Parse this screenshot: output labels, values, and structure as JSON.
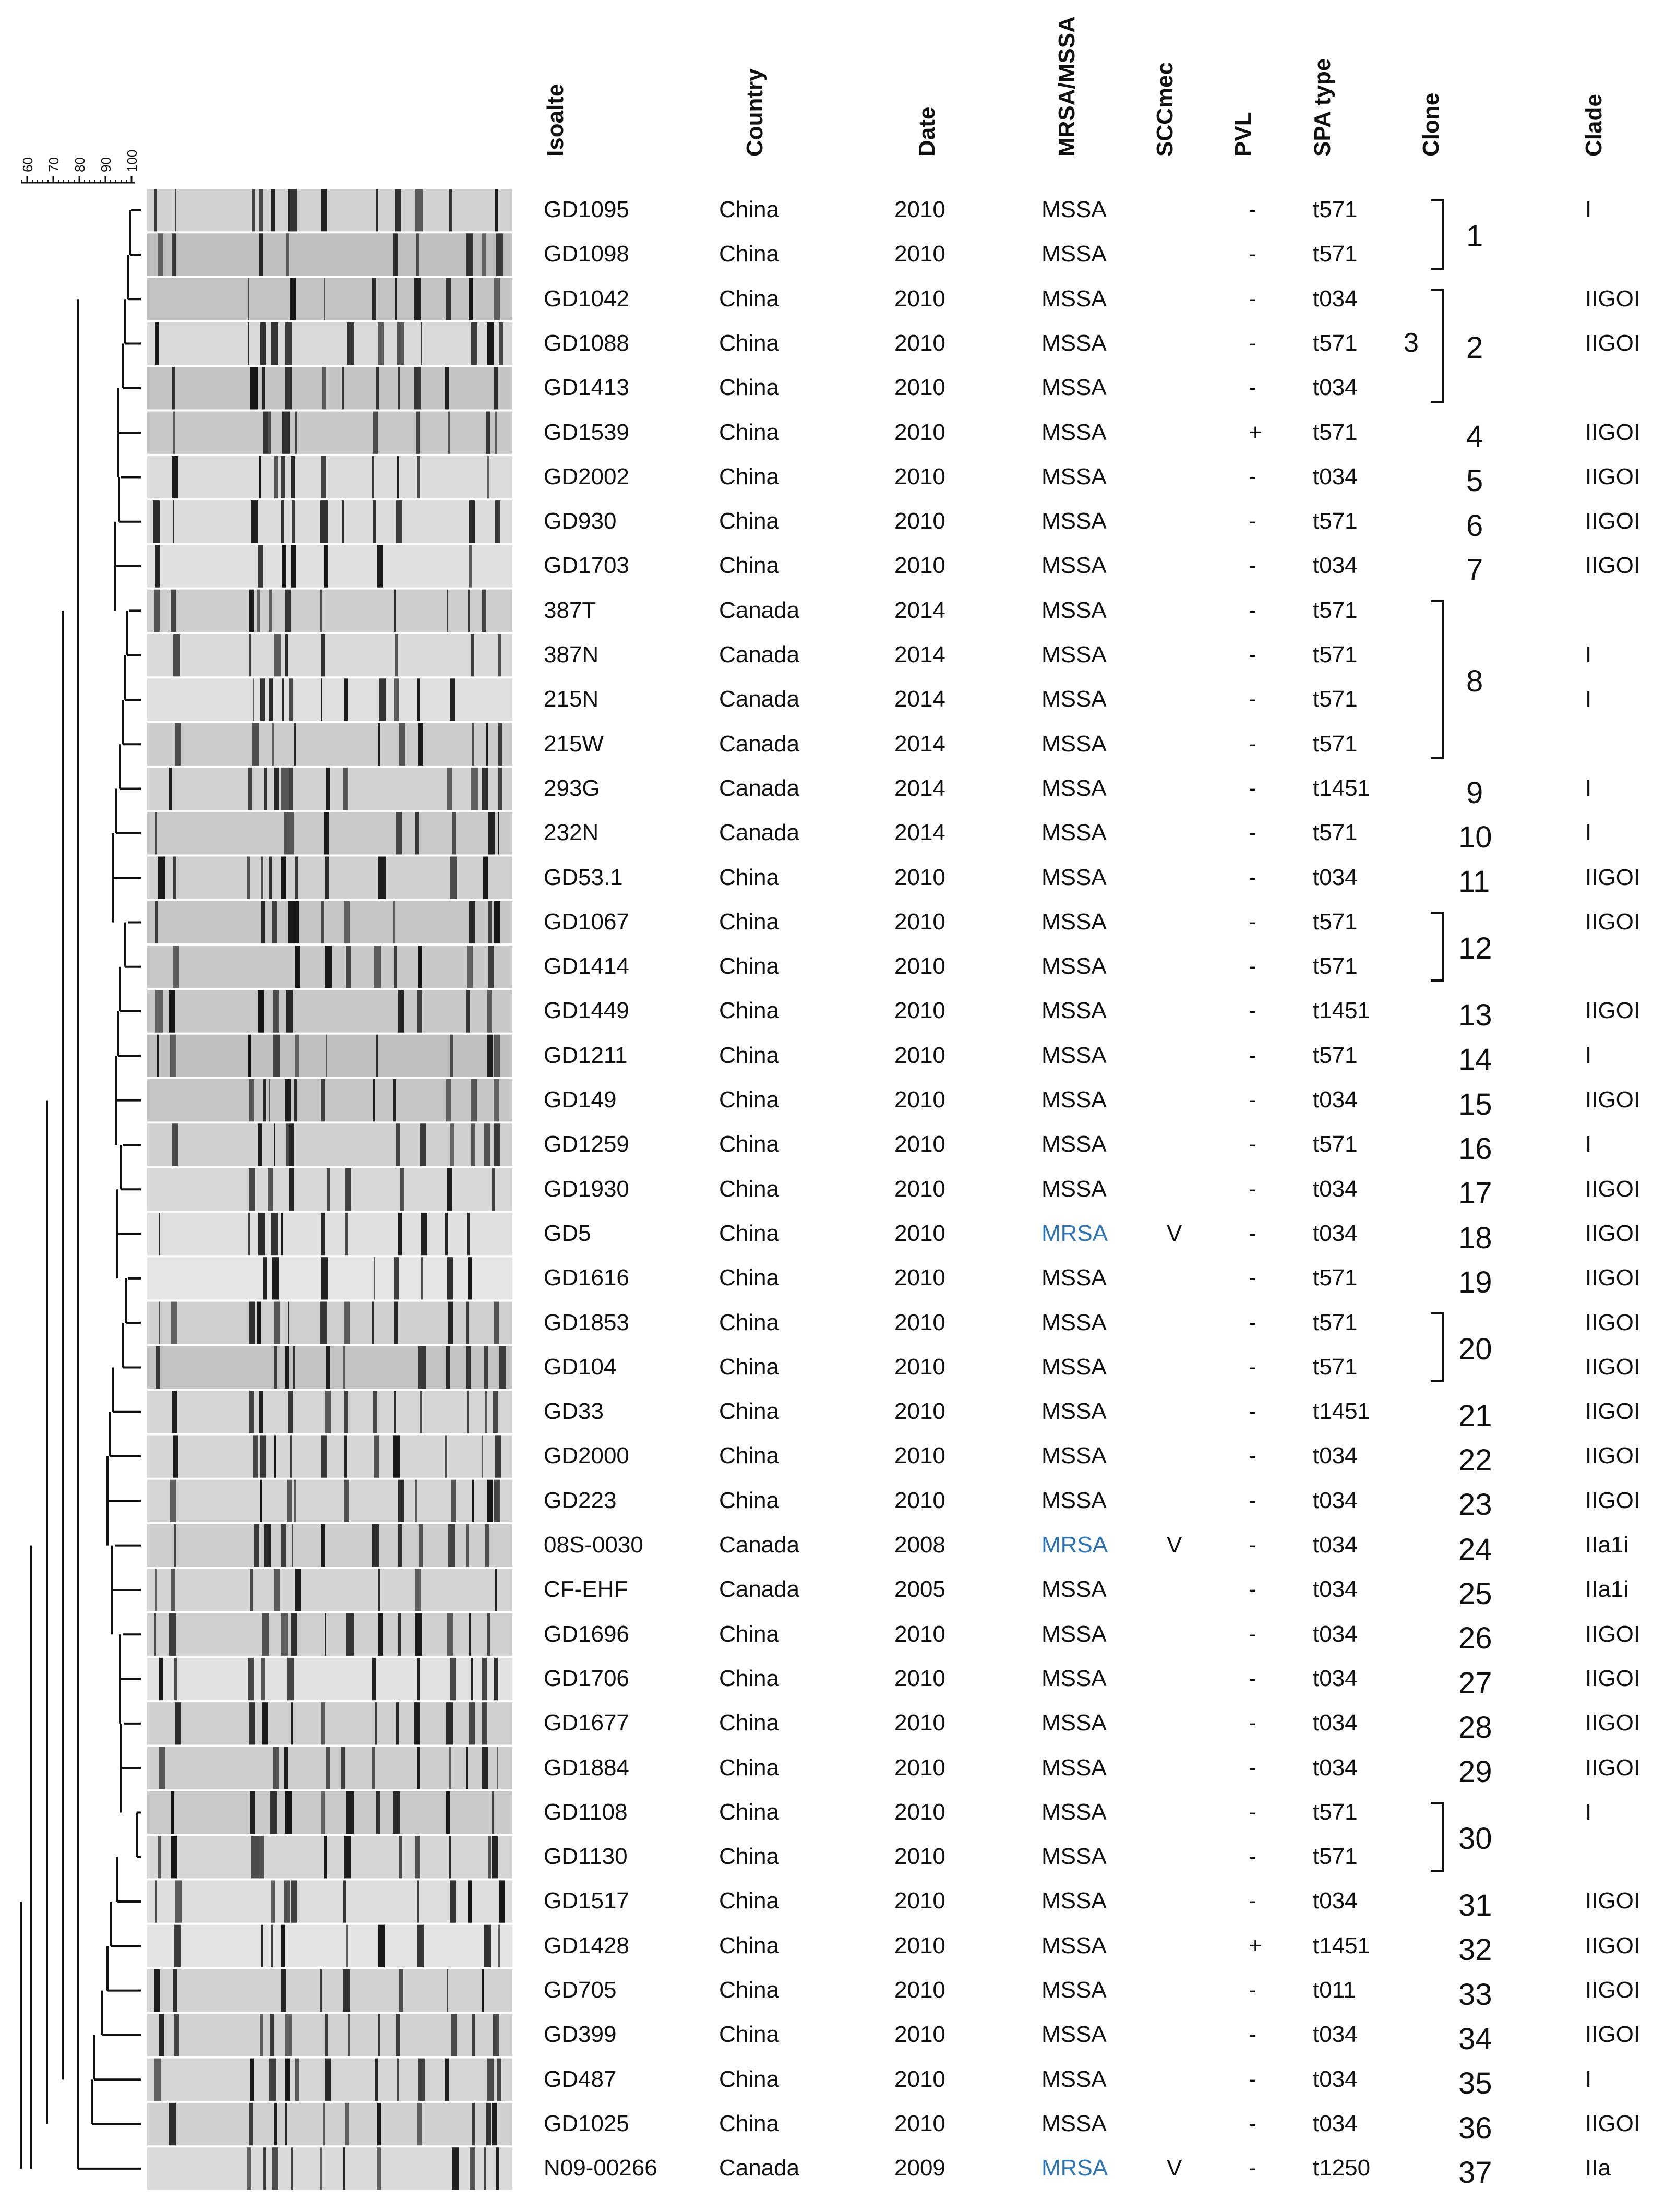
{
  "headers": {
    "isolate": "Isoalte",
    "country": "Country",
    "date": "Date",
    "mrsa_mssa": "MRSA/MSSA",
    "sccmec": "SCCmec",
    "pvl": "PVL",
    "spa_type": "SPA type",
    "clone": "Clone",
    "clade": "Clade"
  },
  "scale_ticks": [
    "60",
    "70",
    "80",
    "90",
    "100"
  ],
  "colors": {
    "mrsa_text": "#2e75b6",
    "text": "#111111",
    "gel_background": "#d0d0d0"
  },
  "rows": [
    {
      "isolate": "GD1095",
      "country": "China",
      "date": "2010",
      "status": "MSSA",
      "sccmec": "",
      "pvl": "-",
      "spa": "t571",
      "clade": "I"
    },
    {
      "isolate": "GD1098",
      "country": "China",
      "date": "2010",
      "status": "MSSA",
      "sccmec": "",
      "pvl": "-",
      "spa": "t571",
      "clade": ""
    },
    {
      "isolate": "GD1042",
      "country": "China",
      "date": "2010",
      "status": "MSSA",
      "sccmec": "",
      "pvl": "-",
      "spa": "t034",
      "clade": "IIGOI"
    },
    {
      "isolate": "GD1088",
      "country": "China",
      "date": "2010",
      "status": "MSSA",
      "sccmec": "",
      "pvl": "-",
      "spa": "t571",
      "clade": "IIGOI"
    },
    {
      "isolate": "GD1413",
      "country": "China",
      "date": "2010",
      "status": "MSSA",
      "sccmec": "",
      "pvl": "-",
      "spa": "t034",
      "clade": ""
    },
    {
      "isolate": "GD1539",
      "country": "China",
      "date": "2010",
      "status": "MSSA",
      "sccmec": "",
      "pvl": "+",
      "spa": "t571",
      "clade": "IIGOI"
    },
    {
      "isolate": "GD2002",
      "country": "China",
      "date": "2010",
      "status": "MSSA",
      "sccmec": "",
      "pvl": "-",
      "spa": "t034",
      "clade": "IIGOI"
    },
    {
      "isolate": "GD930",
      "country": "China",
      "date": "2010",
      "status": "MSSA",
      "sccmec": "",
      "pvl": "-",
      "spa": "t571",
      "clade": "IIGOI"
    },
    {
      "isolate": "GD1703",
      "country": "China",
      "date": "2010",
      "status": "MSSA",
      "sccmec": "",
      "pvl": "-",
      "spa": "t034",
      "clade": "IIGOI"
    },
    {
      "isolate": "387T",
      "country": "Canada",
      "date": "2014",
      "status": "MSSA",
      "sccmec": "",
      "pvl": "-",
      "spa": "t571",
      "clade": ""
    },
    {
      "isolate": "387N",
      "country": "Canada",
      "date": "2014",
      "status": "MSSA",
      "sccmec": "",
      "pvl": "-",
      "spa": "t571",
      "clade": "I"
    },
    {
      "isolate": "215N",
      "country": "Canada",
      "date": "2014",
      "status": "MSSA",
      "sccmec": "",
      "pvl": "-",
      "spa": "t571",
      "clade": "I"
    },
    {
      "isolate": "215W",
      "country": "Canada",
      "date": "2014",
      "status": "MSSA",
      "sccmec": "",
      "pvl": "-",
      "spa": "t571",
      "clade": ""
    },
    {
      "isolate": "293G",
      "country": "Canada",
      "date": "2014",
      "status": "MSSA",
      "sccmec": "",
      "pvl": "-",
      "spa": "t1451",
      "clade": "I"
    },
    {
      "isolate": "232N",
      "country": "Canada",
      "date": "2014",
      "status": "MSSA",
      "sccmec": "",
      "pvl": "-",
      "spa": "t571",
      "clade": "I"
    },
    {
      "isolate": "GD53.1",
      "country": "China",
      "date": "2010",
      "status": "MSSA",
      "sccmec": "",
      "pvl": "-",
      "spa": "t034",
      "clade": "IIGOI"
    },
    {
      "isolate": "GD1067",
      "country": "China",
      "date": "2010",
      "status": "MSSA",
      "sccmec": "",
      "pvl": "-",
      "spa": "t571",
      "clade": "IIGOI"
    },
    {
      "isolate": "GD1414",
      "country": "China",
      "date": "2010",
      "status": "MSSA",
      "sccmec": "",
      "pvl": "-",
      "spa": "t571",
      "clade": ""
    },
    {
      "isolate": "GD1449",
      "country": "China",
      "date": "2010",
      "status": "MSSA",
      "sccmec": "",
      "pvl": "-",
      "spa": "t1451",
      "clade": "IIGOI"
    },
    {
      "isolate": "GD1211",
      "country": "China",
      "date": "2010",
      "status": "MSSA",
      "sccmec": "",
      "pvl": "-",
      "spa": "t571",
      "clade": "I"
    },
    {
      "isolate": "GD149",
      "country": "China",
      "date": "2010",
      "status": "MSSA",
      "sccmec": "",
      "pvl": "-",
      "spa": "t034",
      "clade": "IIGOI"
    },
    {
      "isolate": "GD1259",
      "country": "China",
      "date": "2010",
      "status": "MSSA",
      "sccmec": "",
      "pvl": "-",
      "spa": "t571",
      "clade": "I"
    },
    {
      "isolate": "GD1930",
      "country": "China",
      "date": "2010",
      "status": "MSSA",
      "sccmec": "",
      "pvl": "-",
      "spa": "t034",
      "clade": "IIGOI"
    },
    {
      "isolate": "GD5",
      "country": "China",
      "date": "2010",
      "status": "MRSA",
      "sccmec": "V",
      "pvl": "-",
      "spa": "t034",
      "clade": "IIGOI"
    },
    {
      "isolate": "GD1616",
      "country": "China",
      "date": "2010",
      "status": "MSSA",
      "sccmec": "",
      "pvl": "-",
      "spa": "t571",
      "clade": "IIGOI"
    },
    {
      "isolate": "GD1853",
      "country": "China",
      "date": "2010",
      "status": "MSSA",
      "sccmec": "",
      "pvl": "-",
      "spa": "t571",
      "clade": "IIGOI"
    },
    {
      "isolate": "GD104",
      "country": "China",
      "date": "2010",
      "status": "MSSA",
      "sccmec": "",
      "pvl": "-",
      "spa": "t571",
      "clade": "IIGOI"
    },
    {
      "isolate": "GD33",
      "country": "China",
      "date": "2010",
      "status": "MSSA",
      "sccmec": "",
      "pvl": "-",
      "spa": "t1451",
      "clade": "IIGOI"
    },
    {
      "isolate": "GD2000",
      "country": "China",
      "date": "2010",
      "status": "MSSA",
      "sccmec": "",
      "pvl": "-",
      "spa": "t034",
      "clade": "IIGOI"
    },
    {
      "isolate": "GD223",
      "country": "China",
      "date": "2010",
      "status": "MSSA",
      "sccmec": "",
      "pvl": "-",
      "spa": "t034",
      "clade": "IIGOI"
    },
    {
      "isolate": "08S-0030",
      "country": "Canada",
      "date": "2008",
      "status": "MRSA",
      "sccmec": "V",
      "pvl": "-",
      "spa": "t034",
      "clade": "IIa1i"
    },
    {
      "isolate": "CF-EHF",
      "country": "Canada",
      "date": "2005",
      "status": "MSSA",
      "sccmec": "",
      "pvl": "-",
      "spa": "t034",
      "clade": "IIa1i"
    },
    {
      "isolate": "GD1696",
      "country": "China",
      "date": "2010",
      "status": "MSSA",
      "sccmec": "",
      "pvl": "-",
      "spa": "t034",
      "clade": "IIGOI"
    },
    {
      "isolate": "GD1706",
      "country": "China",
      "date": "2010",
      "status": "MSSA",
      "sccmec": "",
      "pvl": "-",
      "spa": "t034",
      "clade": "IIGOI"
    },
    {
      "isolate": "GD1677",
      "country": "China",
      "date": "2010",
      "status": "MSSA",
      "sccmec": "",
      "pvl": "-",
      "spa": "t034",
      "clade": "IIGOI"
    },
    {
      "isolate": "GD1884",
      "country": "China",
      "date": "2010",
      "status": "MSSA",
      "sccmec": "",
      "pvl": "-",
      "spa": "t034",
      "clade": "IIGOI"
    },
    {
      "isolate": "GD1108",
      "country": "China",
      "date": "2010",
      "status": "MSSA",
      "sccmec": "",
      "pvl": "-",
      "spa": "t571",
      "clade": "I"
    },
    {
      "isolate": "GD1130",
      "country": "China",
      "date": "2010",
      "status": "MSSA",
      "sccmec": "",
      "pvl": "-",
      "spa": "t571",
      "clade": ""
    },
    {
      "isolate": "GD1517",
      "country": "China",
      "date": "2010",
      "status": "MSSA",
      "sccmec": "",
      "pvl": "-",
      "spa": "t034",
      "clade": "IIGOI"
    },
    {
      "isolate": "GD1428",
      "country": "China",
      "date": "2010",
      "status": "MSSA",
      "sccmec": "",
      "pvl": "+",
      "spa": "t1451",
      "clade": "IIGOI"
    },
    {
      "isolate": "GD705",
      "country": "China",
      "date": "2010",
      "status": "MSSA",
      "sccmec": "",
      "pvl": "-",
      "spa": "t011",
      "clade": "IIGOI"
    },
    {
      "isolate": "GD399",
      "country": "China",
      "date": "2010",
      "status": "MSSA",
      "sccmec": "",
      "pvl": "-",
      "spa": "t034",
      "clade": "IIGOI"
    },
    {
      "isolate": "GD487",
      "country": "China",
      "date": "2010",
      "status": "MSSA",
      "sccmec": "",
      "pvl": "-",
      "spa": "t034",
      "clade": "I"
    },
    {
      "isolate": "GD1025",
      "country": "China",
      "date": "2010",
      "status": "MSSA",
      "sccmec": "",
      "pvl": "-",
      "spa": "t034",
      "clade": "IIGOI"
    },
    {
      "isolate": "N09-00266",
      "country": "Canada",
      "date": "2009",
      "status": "MRSA",
      "sccmec": "V",
      "pvl": "-",
      "spa": "t1250",
      "clade": "IIa"
    }
  ],
  "clones": [
    {
      "label": "1",
      "first": 0,
      "last": 1
    },
    {
      "label": "2",
      "first": 2,
      "last": 4
    },
    {
      "label": "4",
      "first": 5,
      "last": 5
    },
    {
      "label": "5",
      "first": 6,
      "last": 6
    },
    {
      "label": "6",
      "first": 7,
      "last": 7
    },
    {
      "label": "7",
      "first": 8,
      "last": 8
    },
    {
      "label": "8",
      "first": 9,
      "last": 12
    },
    {
      "label": "9",
      "first": 13,
      "last": 13
    },
    {
      "label": "10",
      "first": 14,
      "last": 14
    },
    {
      "label": "11",
      "first": 15,
      "last": 15
    },
    {
      "label": "12",
      "first": 16,
      "last": 17
    },
    {
      "label": "13",
      "first": 18,
      "last": 18
    },
    {
      "label": "14",
      "first": 19,
      "last": 19
    },
    {
      "label": "15",
      "first": 20,
      "last": 20
    },
    {
      "label": "16",
      "first": 21,
      "last": 21
    },
    {
      "label": "17",
      "first": 22,
      "last": 22
    },
    {
      "label": "18",
      "first": 23,
      "last": 23
    },
    {
      "label": "19",
      "first": 24,
      "last": 24
    },
    {
      "label": "20",
      "first": 25,
      "last": 26
    },
    {
      "label": "21",
      "first": 27,
      "last": 27
    },
    {
      "label": "22",
      "first": 28,
      "last": 28
    },
    {
      "label": "23",
      "first": 29,
      "last": 29
    },
    {
      "label": "24",
      "first": 30,
      "last": 30
    },
    {
      "label": "25",
      "first": 31,
      "last": 31
    },
    {
      "label": "26",
      "first": 32,
      "last": 32
    },
    {
      "label": "27",
      "first": 33,
      "last": 33
    },
    {
      "label": "28",
      "first": 34,
      "last": 34
    },
    {
      "label": "29",
      "first": 35,
      "last": 35
    },
    {
      "label": "30",
      "first": 36,
      "last": 37
    },
    {
      "label": "31",
      "first": 38,
      "last": 38
    },
    {
      "label": "32",
      "first": 39,
      "last": 39
    },
    {
      "label": "33",
      "first": 40,
      "last": 40
    },
    {
      "label": "34",
      "first": 41,
      "last": 41
    },
    {
      "label": "35",
      "first": 42,
      "last": 42
    },
    {
      "label": "36",
      "first": 43,
      "last": 43
    },
    {
      "label": "37",
      "first": 44,
      "last": 44
    }
  ],
  "subclone_label": "3"
}
